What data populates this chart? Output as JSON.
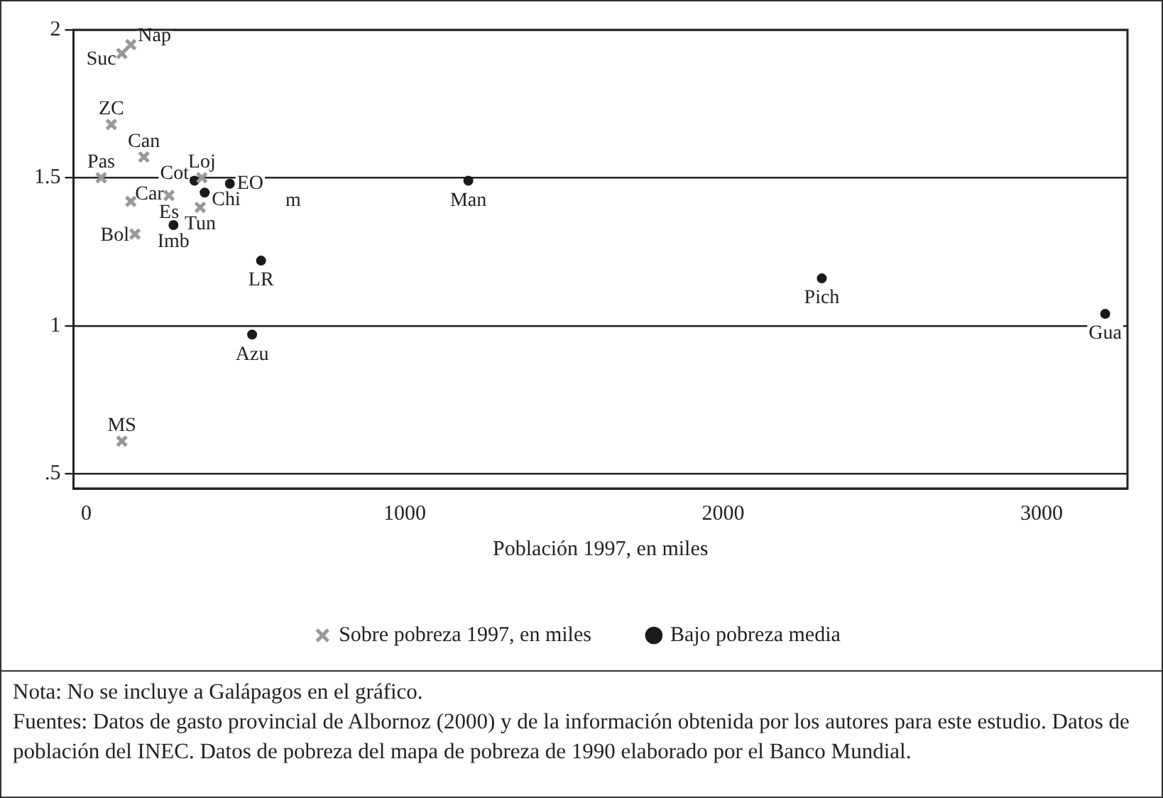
{
  "chart_data": {
    "type": "scatter",
    "xlabel": "Población 1997, en miles",
    "series": [
      {
        "name": "Sobre pobreza 1997, en miles",
        "color": "#999999",
        "marker": "cross",
        "x": [
          140,
          112,
          79,
          181,
          47,
          140,
          363,
          260,
          358,
          153,
          112
        ],
        "values": [
          1.95,
          1.92,
          1.68,
          1.57,
          1.5,
          1.42,
          1.5,
          1.44,
          1.4,
          1.31,
          0.61
        ]
      },
      {
        "name": "Bajo pobreza media",
        "color": "#1a1a1a",
        "marker": "circle",
        "x": [
          340,
          451,
          372,
          274,
          549,
          521,
          1200,
          2310,
          3200
        ],
        "values": [
          1.49,
          1.48,
          1.45,
          1.34,
          1.22,
          0.97,
          1.49,
          1.16,
          1.04
        ]
      }
    ],
    "xlim": [
      -40,
      3270
    ],
    "xticks": [
      0,
      1000,
      2000,
      3000
    ],
    "ylim": [
      0.45,
      2
    ],
    "yticks": [
      {
        "value": 0.5,
        "label": ".5"
      },
      1,
      {
        "value": 1.5,
        "label": "1.5"
      },
      2
    ],
    "grid": "y",
    "legend": "bottom",
    "annotations": [
      {
        "text": "Nap",
        "x": 140,
        "y": 1.95
      },
      {
        "text": "Suc",
        "x": 112,
        "y": 1.92
      },
      {
        "text": "ZC",
        "x": 79,
        "y": 1.68
      },
      {
        "text": "Can",
        "x": 181,
        "y": 1.57
      },
      {
        "text": "Pas",
        "x": 47,
        "y": 1.5
      },
      {
        "text": "Car",
        "x": 140,
        "y": 1.42
      },
      {
        "text": "Loj",
        "x": 363,
        "y": 1.5
      },
      {
        "text": "Es",
        "x": 260,
        "y": 1.44
      },
      {
        "text": "Tun",
        "x": 358,
        "y": 1.4
      },
      {
        "text": "Bol",
        "x": 153,
        "y": 1.31
      },
      {
        "text": "MS",
        "x": 112,
        "y": 0.61
      },
      {
        "text": "Cot",
        "x": 340,
        "y": 1.49
      },
      {
        "text": "EO",
        "x": 451,
        "y": 1.48
      },
      {
        "text": "Chi",
        "x": 372,
        "y": 1.45
      },
      {
        "text": "Imb",
        "x": 274,
        "y": 1.34
      },
      {
        "text": "LR",
        "x": 549,
        "y": 1.22
      },
      {
        "text": "Azu",
        "x": 521,
        "y": 0.97
      },
      {
        "text": "Man",
        "x": 1200,
        "y": 1.49
      },
      {
        "text": "Pich",
        "x": 2310,
        "y": 1.16
      },
      {
        "text": "Gua",
        "x": 3200,
        "y": 1.04
      },
      "m",
      "Nota: No se incluye a Galápagos en el gráfico.",
      "Fuentes: Datos de gasto provincial de Albornoz (2000) y de la información obtenida por los autores para este estudio. Datos de población del INEC. Datos de pobreza del mapa de pobreza de 1990 elaborado por el Banco Mundial."
    ]
  }
}
